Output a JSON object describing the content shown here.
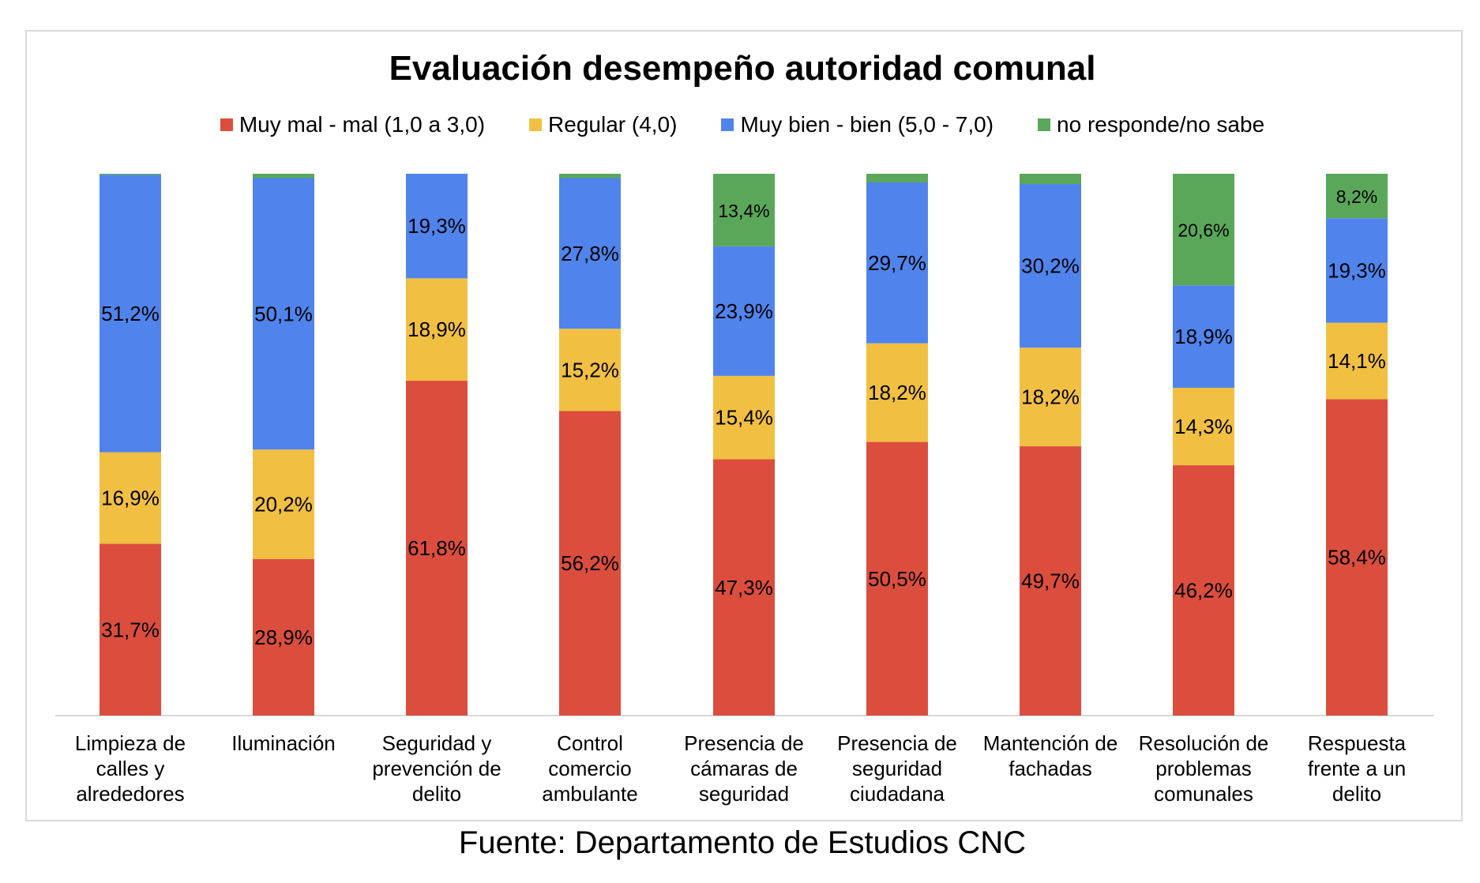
{
  "chart_data": {
    "type": "bar",
    "stacked": true,
    "title": "Evaluación desempeño autoridad comunal",
    "legend_position": "top",
    "grid": false,
    "ylim": [
      0,
      100
    ],
    "categories": [
      "Limpieza de calles y alrededores",
      "Iluminación",
      "Seguridad y prevención de delito",
      "Control comercio ambulante",
      "Presencia de cámaras de seguridad",
      "Presencia de seguridad ciudadana",
      "Mantención de fachadas",
      "Resolución de problemas comunales",
      "Respuesta frente a un delito"
    ],
    "category_lines": [
      [
        "Limpieza de",
        "calles y",
        "alrededores"
      ],
      [
        "Iluminación"
      ],
      [
        "Seguridad y",
        "prevención de",
        "delito"
      ],
      [
        "Control",
        "comercio",
        "ambulante"
      ],
      [
        "Presencia de",
        "cámaras de",
        "seguridad"
      ],
      [
        "Presencia de",
        "seguridad",
        "ciudadana"
      ],
      [
        "Mantención de",
        "fachadas"
      ],
      [
        "Resolución de",
        "problemas",
        "comunales"
      ],
      [
        "Respuesta",
        "frente a un",
        "delito"
      ]
    ],
    "series": [
      {
        "name": "Muy mal - mal (1,0 a 3,0)",
        "color": "#db4e3d",
        "values": [
          31.7,
          28.9,
          61.8,
          56.2,
          47.3,
          50.5,
          49.7,
          46.2,
          58.4
        ],
        "labels": [
          "31,7%",
          "28,9%",
          "61,8%",
          "56,2%",
          "47,3%",
          "50,5%",
          "49,7%",
          "46,2%",
          "58,4%"
        ]
      },
      {
        "name": "Regular (4,0)",
        "color": "#f1bf42",
        "values": [
          16.9,
          20.2,
          18.9,
          15.2,
          15.4,
          18.2,
          18.2,
          14.3,
          14.1
        ],
        "labels": [
          "16,9%",
          "20,2%",
          "18,9%",
          "15,2%",
          "15,4%",
          "18,2%",
          "18,2%",
          "14,3%",
          "14,1%"
        ]
      },
      {
        "name": "Muy bien - bien (5,0 - 7,0)",
        "color": "#5084ec",
        "values": [
          51.2,
          50.1,
          19.3,
          27.8,
          23.9,
          29.7,
          30.2,
          18.9,
          19.3
        ],
        "labels": [
          "51,2%",
          "50,1%",
          "19,3%",
          "27,8%",
          "23,9%",
          "29,7%",
          "30,2%",
          "18,9%",
          "19,3%"
        ]
      },
      {
        "name": "no responde/no sabe",
        "color": "#5aa75a",
        "values": [
          0.2,
          0.8,
          0.0,
          0.8,
          13.4,
          1.6,
          1.9,
          20.6,
          8.2
        ],
        "labels": [
          "",
          "",
          "",
          "",
          "13,4%",
          "",
          "",
          "20,6%",
          "8,2%"
        ]
      }
    ]
  },
  "source_note": "Fuente: Departamento de Estudios CNC"
}
